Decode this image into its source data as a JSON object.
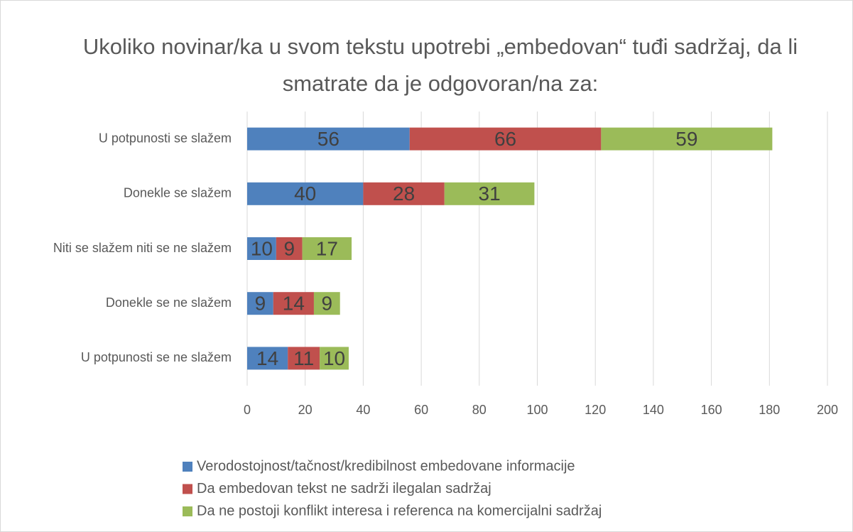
{
  "chart_data": {
    "type": "stacked-bar-horizontal",
    "title": "Ukoliko novinar/ka u svom tekstu upotrebi „embedovan“ tuđi sadržaj, da li smatrate da je odgovoran/na za:",
    "categories": [
      "U potpunosti se slažem",
      "Donekle se slažem",
      "Niti se slažem niti se ne slažem",
      "Donekle se ne slažem",
      "U potpunosti se ne slažem"
    ],
    "series": [
      {
        "name": "Verodostojnost/tačnost/kredibilnost embedovane informacije",
        "color": "#4f81bd",
        "values": [
          56,
          40,
          10,
          9,
          14
        ]
      },
      {
        "name": "Da embedovan tekst ne sadrži ilegalan sadržaj",
        "color": "#c0504d",
        "values": [
          66,
          28,
          9,
          14,
          11
        ]
      },
      {
        "name": "Da ne postoji konflikt interesa i referenca na komercijalni sadržaj",
        "color": "#9bbb59",
        "values": [
          59,
          31,
          17,
          9,
          10
        ]
      }
    ],
    "xlim": [
      0,
      200
    ],
    "xticks": [
      0,
      20,
      40,
      60,
      80,
      100,
      120,
      140,
      160,
      180,
      200
    ],
    "grid": true,
    "legend": "bottom"
  }
}
